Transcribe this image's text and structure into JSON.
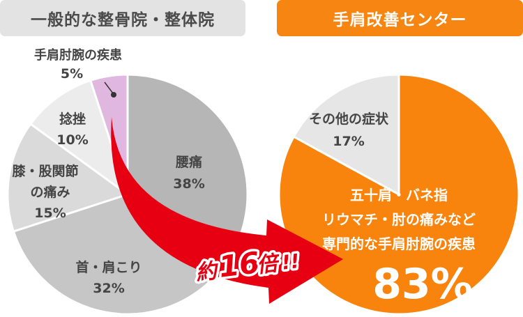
{
  "headers": {
    "left": "一般的な整骨院・整体院",
    "right": "手肩改善センター"
  },
  "chart_data": [
    {
      "type": "pie",
      "title": "一般的な整骨院・整体院",
      "slices": [
        {
          "label": "腰痛",
          "value": 38,
          "value_label": "38%",
          "color": "#b6b6b6"
        },
        {
          "label": "首・肩こり",
          "value": 32,
          "value_label": "32%",
          "color": "#c6c6c6"
        },
        {
          "label": "膝・股関節の痛み",
          "value": 15,
          "value_label": "15%",
          "color": "#dadada"
        },
        {
          "label": "捻挫",
          "value": 10,
          "value_label": "10%",
          "color": "#ececec"
        },
        {
          "label": "手肩肘腕の疾患",
          "value": 5,
          "value_label": "5%",
          "color": "#dfb7df"
        }
      ]
    },
    {
      "type": "pie",
      "title": "手肩改善センター",
      "slices": [
        {
          "label": "五十肩・バネ指 リウマチ・肘の痛みなど 専門的な手肩肘腕の疾患",
          "value": 83,
          "value_label": "83%",
          "color": "#f8840d"
        },
        {
          "label": "その他の症状",
          "value": 17,
          "value_label": "17%",
          "color": "#e6e6e6"
        }
      ]
    }
  ],
  "labels": {
    "left": {
      "lumbar_name": "腰痛",
      "lumbar_pct": "38%",
      "neck_name": "首・肩こり",
      "neck_pct": "32%",
      "knee_line1": "膝・股関節",
      "knee_line2": "の痛み",
      "knee_pct": "15%",
      "sprain_name": "捻挫",
      "sprain_pct": "10%",
      "hand_name": "手肩肘腕の疾患",
      "hand_pct": "5%"
    },
    "right": {
      "other_name": "その他の症状",
      "other_pct": "17%",
      "special_line1": "五十肩・バネ指",
      "special_line2": "リウマチ・肘の痛みなど",
      "special_line3": "専門的な手肩肘腕の疾患",
      "special_pct": "83%"
    }
  },
  "arrow": {
    "prefix": "約",
    "number": "16",
    "suffix": "倍",
    "exclaim": "!!",
    "color": "#e60012"
  }
}
